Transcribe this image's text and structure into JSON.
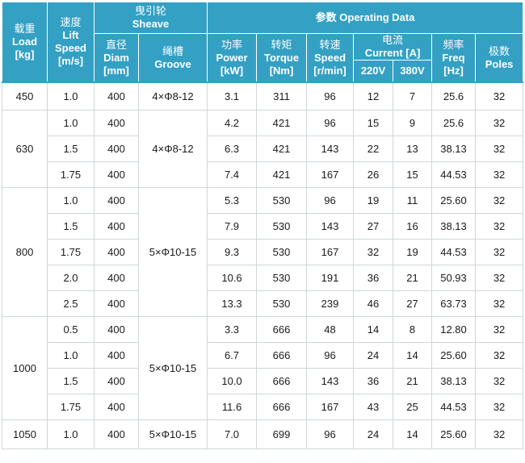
{
  "header": {
    "load": [
      "载重",
      "Load",
      "[kg]"
    ],
    "speed": [
      "速度",
      "Lift",
      "Speed",
      "[m/s]"
    ],
    "sheave": [
      "曳引轮",
      "Sheave"
    ],
    "diam": [
      "直径",
      "Diam",
      "[mm]"
    ],
    "groove": [
      "绳槽",
      "Groove"
    ],
    "operating": "参数 Operating Data",
    "power": [
      "功率",
      "Power",
      "[kW]"
    ],
    "torque": [
      "转矩",
      "Torque",
      "[Nm]"
    ],
    "rspeed": [
      "转速",
      "Speed",
      "[r/min]"
    ],
    "current": [
      "电流",
      "Current [A]"
    ],
    "v220": "220V",
    "v380": "380V",
    "freq": [
      "频率",
      "Freq",
      "[Hz]"
    ],
    "poles": [
      "极数",
      "Poles"
    ]
  },
  "groups": [
    {
      "load": "450",
      "groove": "4×Φ8-12",
      "rows": [
        [
          "1.0",
          "400",
          "3.1",
          "311",
          "96",
          "12",
          "7",
          "25.6",
          "32"
        ]
      ]
    },
    {
      "load": "630",
      "groove": "4×Φ8-12",
      "rows": [
        [
          "1.0",
          "400",
          "4.2",
          "421",
          "96",
          "15",
          "9",
          "25.6",
          "32"
        ],
        [
          "1.5",
          "400",
          "6.3",
          "421",
          "143",
          "22",
          "13",
          "38.13",
          "32"
        ],
        [
          "1.75",
          "400",
          "7.4",
          "421",
          "167",
          "26",
          "15",
          "44.53",
          "32"
        ]
      ]
    },
    {
      "load": "800",
      "groove": "5×Φ10-15",
      "rows": [
        [
          "1.0",
          "400",
          "5.3",
          "530",
          "96",
          "19",
          "11",
          "25.60",
          "32"
        ],
        [
          "1.5",
          "400",
          "7.9",
          "530",
          "143",
          "27",
          "16",
          "38.13",
          "32"
        ],
        [
          "1.75",
          "400",
          "9.3",
          "530",
          "167",
          "32",
          "19",
          "44.53",
          "32"
        ],
        [
          "2.0",
          "400",
          "10.6",
          "530",
          "191",
          "36",
          "21",
          "50.93",
          "32"
        ],
        [
          "2.5",
          "400",
          "13.3",
          "530",
          "239",
          "46",
          "27",
          "63.73",
          "32"
        ]
      ]
    },
    {
      "load": "1000",
      "groove": "5×Φ10-15",
      "rows": [
        [
          "0.5",
          "400",
          "3.3",
          "666",
          "48",
          "14",
          "8",
          "12.80",
          "32"
        ],
        [
          "1.0",
          "400",
          "6.7",
          "666",
          "96",
          "24",
          "14",
          "25.60",
          "32"
        ],
        [
          "1.5",
          "400",
          "10.0",
          "666",
          "143",
          "36",
          "21",
          "38.13",
          "32"
        ],
        [
          "1.75",
          "400",
          "11.6",
          "666",
          "167",
          "43",
          "25",
          "44.53",
          "32"
        ]
      ]
    },
    {
      "load": "1050",
      "groove": "5×Φ10-15",
      "rows": [
        [
          "1.0",
          "400",
          "7.0",
          "699",
          "96",
          "24",
          "14",
          "25.60",
          "32"
        ]
      ]
    }
  ],
  "colors": {
    "header_bg": "#33a0c4",
    "header_text": "#ffffff",
    "grid": "#cfd6da"
  }
}
